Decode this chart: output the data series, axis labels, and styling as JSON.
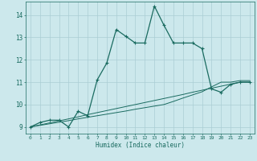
{
  "xlabel": "Humidex (Indice chaleur)",
  "bg_color": "#cce8ec",
  "grid_color": "#aacdd4",
  "line_color": "#1a6b60",
  "xlim": [
    -0.5,
    23.5
  ],
  "ylim": [
    8.7,
    14.6
  ],
  "xticks": [
    0,
    1,
    2,
    3,
    4,
    5,
    6,
    7,
    8,
    9,
    10,
    11,
    12,
    13,
    14,
    15,
    16,
    17,
    18,
    19,
    20,
    21,
    22,
    23
  ],
  "yticks": [
    9,
    10,
    11,
    12,
    13,
    14
  ],
  "main_x": [
    0,
    1,
    2,
    3,
    4,
    5,
    6,
    7,
    8,
    9,
    10,
    11,
    12,
    13,
    14,
    15,
    16,
    17,
    18,
    19,
    20,
    21,
    22,
    23
  ],
  "main_y": [
    9.0,
    9.2,
    9.3,
    9.3,
    9.0,
    9.7,
    9.5,
    11.1,
    11.85,
    13.35,
    13.05,
    12.75,
    12.75,
    14.4,
    13.55,
    12.75,
    12.75,
    12.75,
    12.5,
    10.7,
    10.55,
    10.9,
    11.0,
    11.0
  ],
  "ref1_x": [
    0,
    1,
    2,
    3,
    4,
    5,
    6,
    7,
    8,
    9,
    10,
    11,
    12,
    13,
    14,
    15,
    16,
    17,
    18,
    19,
    20,
    21,
    22,
    23
  ],
  "ref1_y": [
    9.0,
    9.09,
    9.18,
    9.27,
    9.36,
    9.45,
    9.55,
    9.64,
    9.73,
    9.82,
    9.91,
    10.0,
    10.09,
    10.18,
    10.27,
    10.36,
    10.45,
    10.55,
    10.64,
    10.73,
    10.82,
    10.91,
    11.0,
    11.0
  ],
  "ref2_x": [
    0,
    1,
    2,
    3,
    4,
    5,
    6,
    7,
    8,
    9,
    10,
    11,
    12,
    13,
    14,
    15,
    16,
    17,
    18,
    19,
    20,
    21,
    22,
    23
  ],
  "ref2_y": [
    9.0,
    9.07,
    9.14,
    9.21,
    9.28,
    9.36,
    9.43,
    9.5,
    9.57,
    9.64,
    9.71,
    9.79,
    9.86,
    9.93,
    10.0,
    10.14,
    10.29,
    10.43,
    10.57,
    10.79,
    11.0,
    11.0,
    11.07,
    11.07
  ]
}
